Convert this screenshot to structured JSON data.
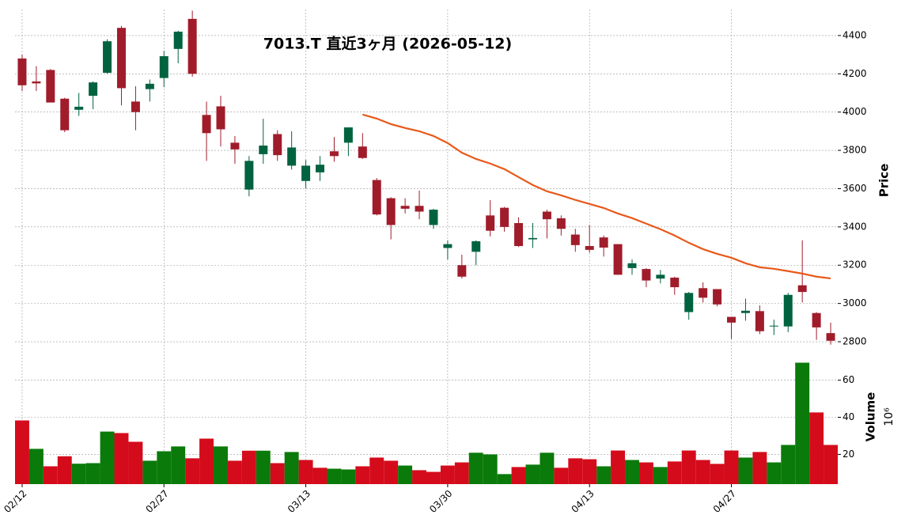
{
  "chart_data": {
    "type": "candlestick",
    "title": "7013.T 直近3ヶ月 (2026-05-12)",
    "categories": [
      "02/12",
      null,
      null,
      null,
      null,
      null,
      null,
      null,
      null,
      null,
      "02/27",
      null,
      null,
      null,
      null,
      null,
      null,
      null,
      null,
      null,
      "03/13",
      null,
      null,
      null,
      null,
      null,
      null,
      null,
      null,
      null,
      "03/30",
      null,
      null,
      null,
      null,
      null,
      null,
      null,
      null,
      null,
      "04/13",
      null,
      null,
      null,
      null,
      null,
      null,
      null,
      null,
      null,
      "04/27",
      null,
      null,
      null,
      null,
      null,
      null,
      null
    ],
    "open": [
      4280,
      4160,
      4220,
      4070,
      4012,
      4085,
      4205,
      4440,
      4055,
      4120,
      4178,
      4330,
      4487,
      3985,
      4030,
      3840,
      3595,
      3780,
      3885,
      3720,
      3640,
      3685,
      3795,
      3840,
      3820,
      3645,
      3550,
      3510,
      3510,
      3410,
      3290,
      3200,
      3270,
      3460,
      3500,
      3420,
      3335,
      3480,
      3445,
      3360,
      3300,
      3345,
      3310,
      3185,
      3180,
      3130,
      3135,
      2955,
      3080,
      3075,
      2930,
      2950,
      2960,
      2880,
      2880,
      3095,
      2950,
      2845
    ],
    "high": [
      4300,
      4240,
      4225,
      4075,
      4100,
      4160,
      4380,
      4450,
      4135,
      4170,
      4320,
      4425,
      4530,
      4055,
      4085,
      3875,
      3770,
      3965,
      3905,
      3900,
      3750,
      3770,
      3870,
      3920,
      3890,
      3655,
      3555,
      3550,
      3590,
      3495,
      3330,
      3255,
      3330,
      3540,
      3505,
      3450,
      3420,
      3490,
      3460,
      3390,
      3410,
      3355,
      3310,
      3230,
      3185,
      3175,
      3140,
      3060,
      3110,
      3075,
      2930,
      3025,
      2990,
      2915,
      3055,
      3330,
      2955,
      2900
    ],
    "low": [
      4110,
      4110,
      4050,
      3895,
      3980,
      4015,
      4200,
      4035,
      3905,
      4055,
      4130,
      4255,
      4185,
      3745,
      3820,
      3730,
      3560,
      3730,
      3745,
      3700,
      3600,
      3640,
      3740,
      3770,
      3755,
      3460,
      3335,
      3470,
      3440,
      3390,
      3230,
      3130,
      3200,
      3350,
      3375,
      3295,
      3290,
      3340,
      3355,
      3270,
      3265,
      3245,
      3150,
      3150,
      3085,
      3105,
      3045,
      2915,
      3005,
      2985,
      2815,
      2910,
      2840,
      2835,
      2850,
      3005,
      2810,
      2785
    ],
    "close": [
      4140,
      4150,
      4050,
      3905,
      4028,
      4155,
      4370,
      4125,
      4000,
      4148,
      4292,
      4420,
      4200,
      3890,
      3910,
      3805,
      3745,
      3825,
      3775,
      3815,
      3720,
      3725,
      3770,
      3920,
      3760,
      3465,
      3410,
      3495,
      3480,
      3490,
      3310,
      3140,
      3325,
      3380,
      3400,
      3300,
      3342,
      3440,
      3390,
      3305,
      3280,
      3292,
      3150,
      3210,
      3120,
      3150,
      3085,
      3055,
      3030,
      2995,
      2900,
      2962,
      2855,
      2884,
      3045,
      3060,
      2875,
      2805
    ],
    "up_color": "#006340",
    "down_color": "#a01c2b",
    "ma": {
      "color": "#e8591a",
      "values": [
        null,
        null,
        null,
        null,
        null,
        null,
        null,
        null,
        null,
        null,
        null,
        null,
        null,
        null,
        null,
        null,
        null,
        null,
        null,
        null,
        null,
        null,
        null,
        null,
        3987,
        3966,
        3937,
        3917,
        3900,
        3875,
        3838,
        3788,
        3755,
        3731,
        3702,
        3660,
        3619,
        3586,
        3565,
        3541,
        3520,
        3499,
        3470,
        3446,
        3417,
        3388,
        3355,
        3317,
        3284,
        3259,
        3239,
        3210,
        3189,
        3181,
        3169,
        3156,
        3140,
        3131
      ]
    },
    "ylabel": "Price",
    "ylim": [
      2767,
      4536
    ],
    "yticks": [
      2800,
      3000,
      3200,
      3400,
      3600,
      3800,
      4000,
      4200,
      4400
    ],
    "grid": true,
    "volume": {
      "label": "Volume",
      "offset_label": "10⁶",
      "values": [
        38.3,
        23,
        13.6,
        19,
        15,
        15.3,
        32.3,
        31.5,
        26.8,
        16.6,
        21.7,
        24.3,
        17.9,
        28.5,
        24.3,
        16.6,
        22,
        22,
        15.3,
        21.3,
        17,
        12.8,
        12.3,
        11.9,
        13.6,
        18.3,
        16.6,
        14,
        11.5,
        10.6,
        14,
        15.7,
        20.9,
        20,
        9.4,
        13.2,
        14.5,
        20.9,
        12.8,
        17.9,
        17.4,
        13.6,
        22.1,
        17,
        15.7,
        13.2,
        16.2,
        22.1,
        17,
        14.9,
        22.1,
        18.3,
        21.3,
        15.7,
        25.1,
        69.4,
        42.6,
        25.1
      ],
      "colors": [
        "#d40b1b",
        "#0a7a0a",
        "#d40b1b",
        "#d40b1b",
        "#0a7a0a",
        "#0a7a0a",
        "#0a7a0a",
        "#d40b1b",
        "#d40b1b",
        "#0a7a0a",
        "#0a7a0a",
        "#0a7a0a",
        "#d40b1b",
        "#d40b1b",
        "#0a7a0a",
        "#d40b1b",
        "#d40b1b",
        "#0a7a0a",
        "#d40b1b",
        "#0a7a0a",
        "#d40b1b",
        "#d40b1b",
        "#0a7a0a",
        "#0a7a0a",
        "#d40b1b",
        "#d40b1b",
        "#d40b1b",
        "#0a7a0a",
        "#d40b1b",
        "#d40b1b",
        "#d40b1b",
        "#d40b1b",
        "#0a7a0a",
        "#0a7a0a",
        "#0a7a0a",
        "#d40b1b",
        "#0a7a0a",
        "#0a7a0a",
        "#d40b1b",
        "#d40b1b",
        "#d40b1b",
        "#0a7a0a",
        "#d40b1b",
        "#0a7a0a",
        "#d40b1b",
        "#0a7a0a",
        "#d40b1b",
        "#d40b1b",
        "#d40b1b",
        "#d40b1b",
        "#d40b1b",
        "#0a7a0a",
        "#d40b1b",
        "#0a7a0a",
        "#0a7a0a",
        "#0a7a0a",
        "#d40b1b",
        "#d40b1b"
      ],
      "ylim": [
        4,
        76
      ],
      "yticks": [
        20,
        40,
        60
      ]
    }
  }
}
